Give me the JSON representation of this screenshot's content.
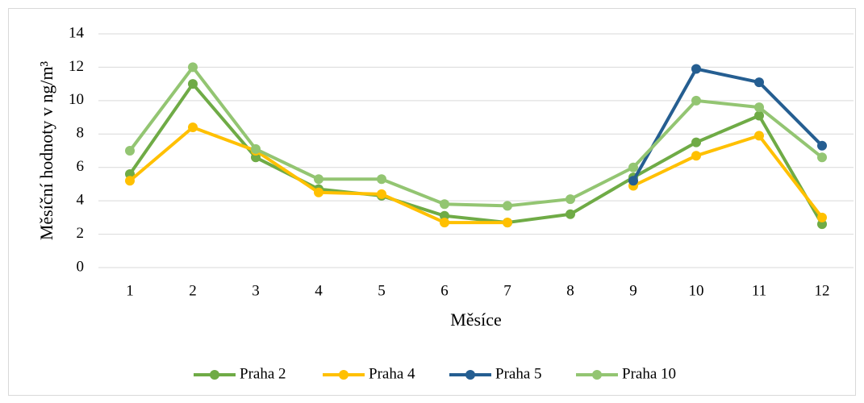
{
  "chart_data": {
    "type": "line",
    "x_label": "Měsíce",
    "y_label": "Měsíční hodnoty v ng/m³",
    "categories": [
      "1",
      "2",
      "3",
      "4",
      "5",
      "6",
      "7",
      "8",
      "9",
      "10",
      "11",
      "12"
    ],
    "series": [
      {
        "name": "Praha 2",
        "color": "#6fab46",
        "values": [
          5.6,
          11.0,
          6.6,
          4.7,
          4.3,
          3.1,
          2.7,
          3.2,
          5.4,
          7.5,
          9.1,
          2.6
        ]
      },
      {
        "name": "Praha 4",
        "color": "#ffc000",
        "values": [
          5.2,
          8.4,
          7.0,
          4.5,
          4.4,
          2.7,
          2.7,
          null,
          4.9,
          6.7,
          7.9,
          3.0
        ]
      },
      {
        "name": "Praha 5",
        "color": "#255e91",
        "values": [
          null,
          null,
          null,
          null,
          null,
          null,
          null,
          null,
          5.2,
          11.9,
          11.1,
          7.3
        ]
      },
      {
        "name": "Praha 10",
        "color": "#93c572",
        "values": [
          7.0,
          12.0,
          7.1,
          5.3,
          5.3,
          3.8,
          3.7,
          4.1,
          6.0,
          10.0,
          9.6,
          6.6
        ]
      }
    ],
    "ylim": [
      0,
      14
    ],
    "yticks": [
      0,
      2,
      4,
      6,
      8,
      10,
      12,
      14
    ],
    "grid": true,
    "legend": "bottom"
  }
}
